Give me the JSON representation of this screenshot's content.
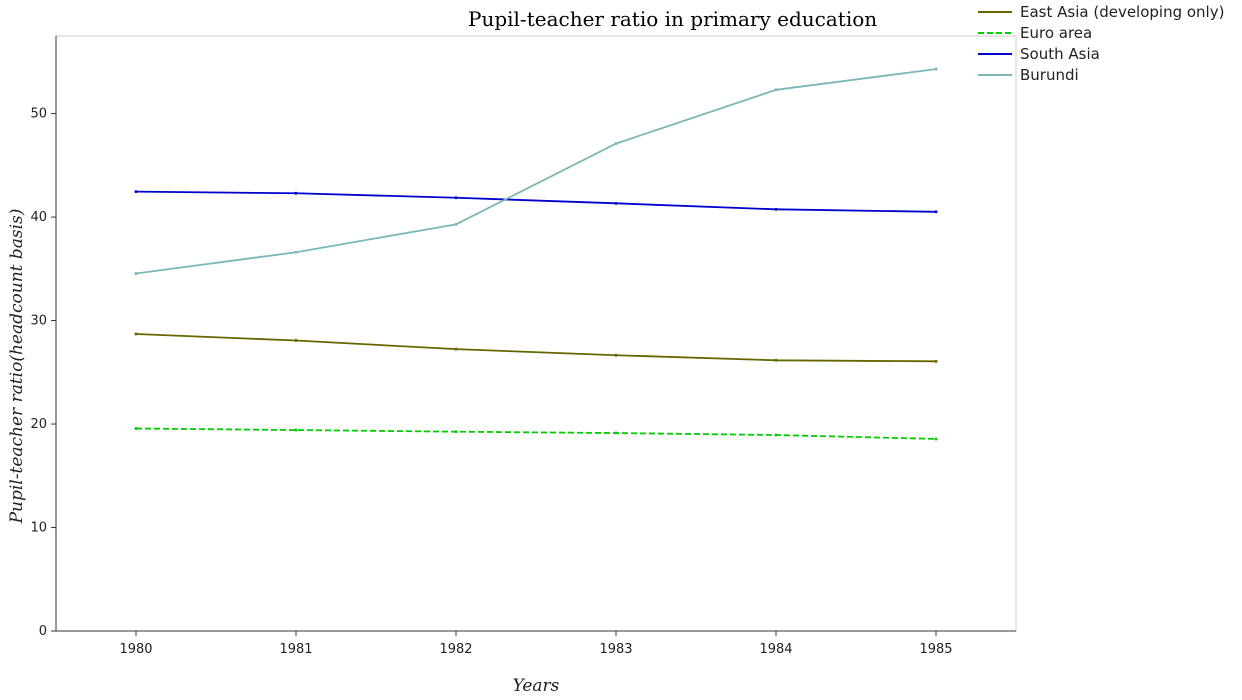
{
  "chart_data": {
    "type": "line",
    "title": "Pupil-teacher ratio in primary education",
    "xlabel": "Years",
    "ylabel": "Pupil-teacher ratio(headcount basis)",
    "x": [
      "1980",
      "1981",
      "1982",
      "1983",
      "1984",
      "1985"
    ],
    "ylim": [
      0,
      57.5
    ],
    "yticks": [
      0,
      10,
      20,
      30,
      40,
      50
    ],
    "legend_position": "top-right",
    "grid": false,
    "series": [
      {
        "name": "East Asia (developing only)",
        "color": "#666600",
        "values": [
          28.7,
          28.07,
          27.24,
          26.65,
          26.16,
          26.06
        ]
      },
      {
        "name": "Euro area",
        "color": "#00cc00",
        "values": [
          19.57,
          19.42,
          19.26,
          19.13,
          18.94,
          18.56
        ]
      },
      {
        "name": "South Asia",
        "color": "#0000cc",
        "values": [
          42.46,
          42.3,
          41.87,
          41.33,
          40.75,
          40.51
        ]
      },
      {
        "name": "Burundi",
        "color": "#7ab8b8",
        "values": [
          34.55,
          36.6,
          39.3,
          47.1,
          52.3,
          54.3
        ]
      }
    ]
  }
}
